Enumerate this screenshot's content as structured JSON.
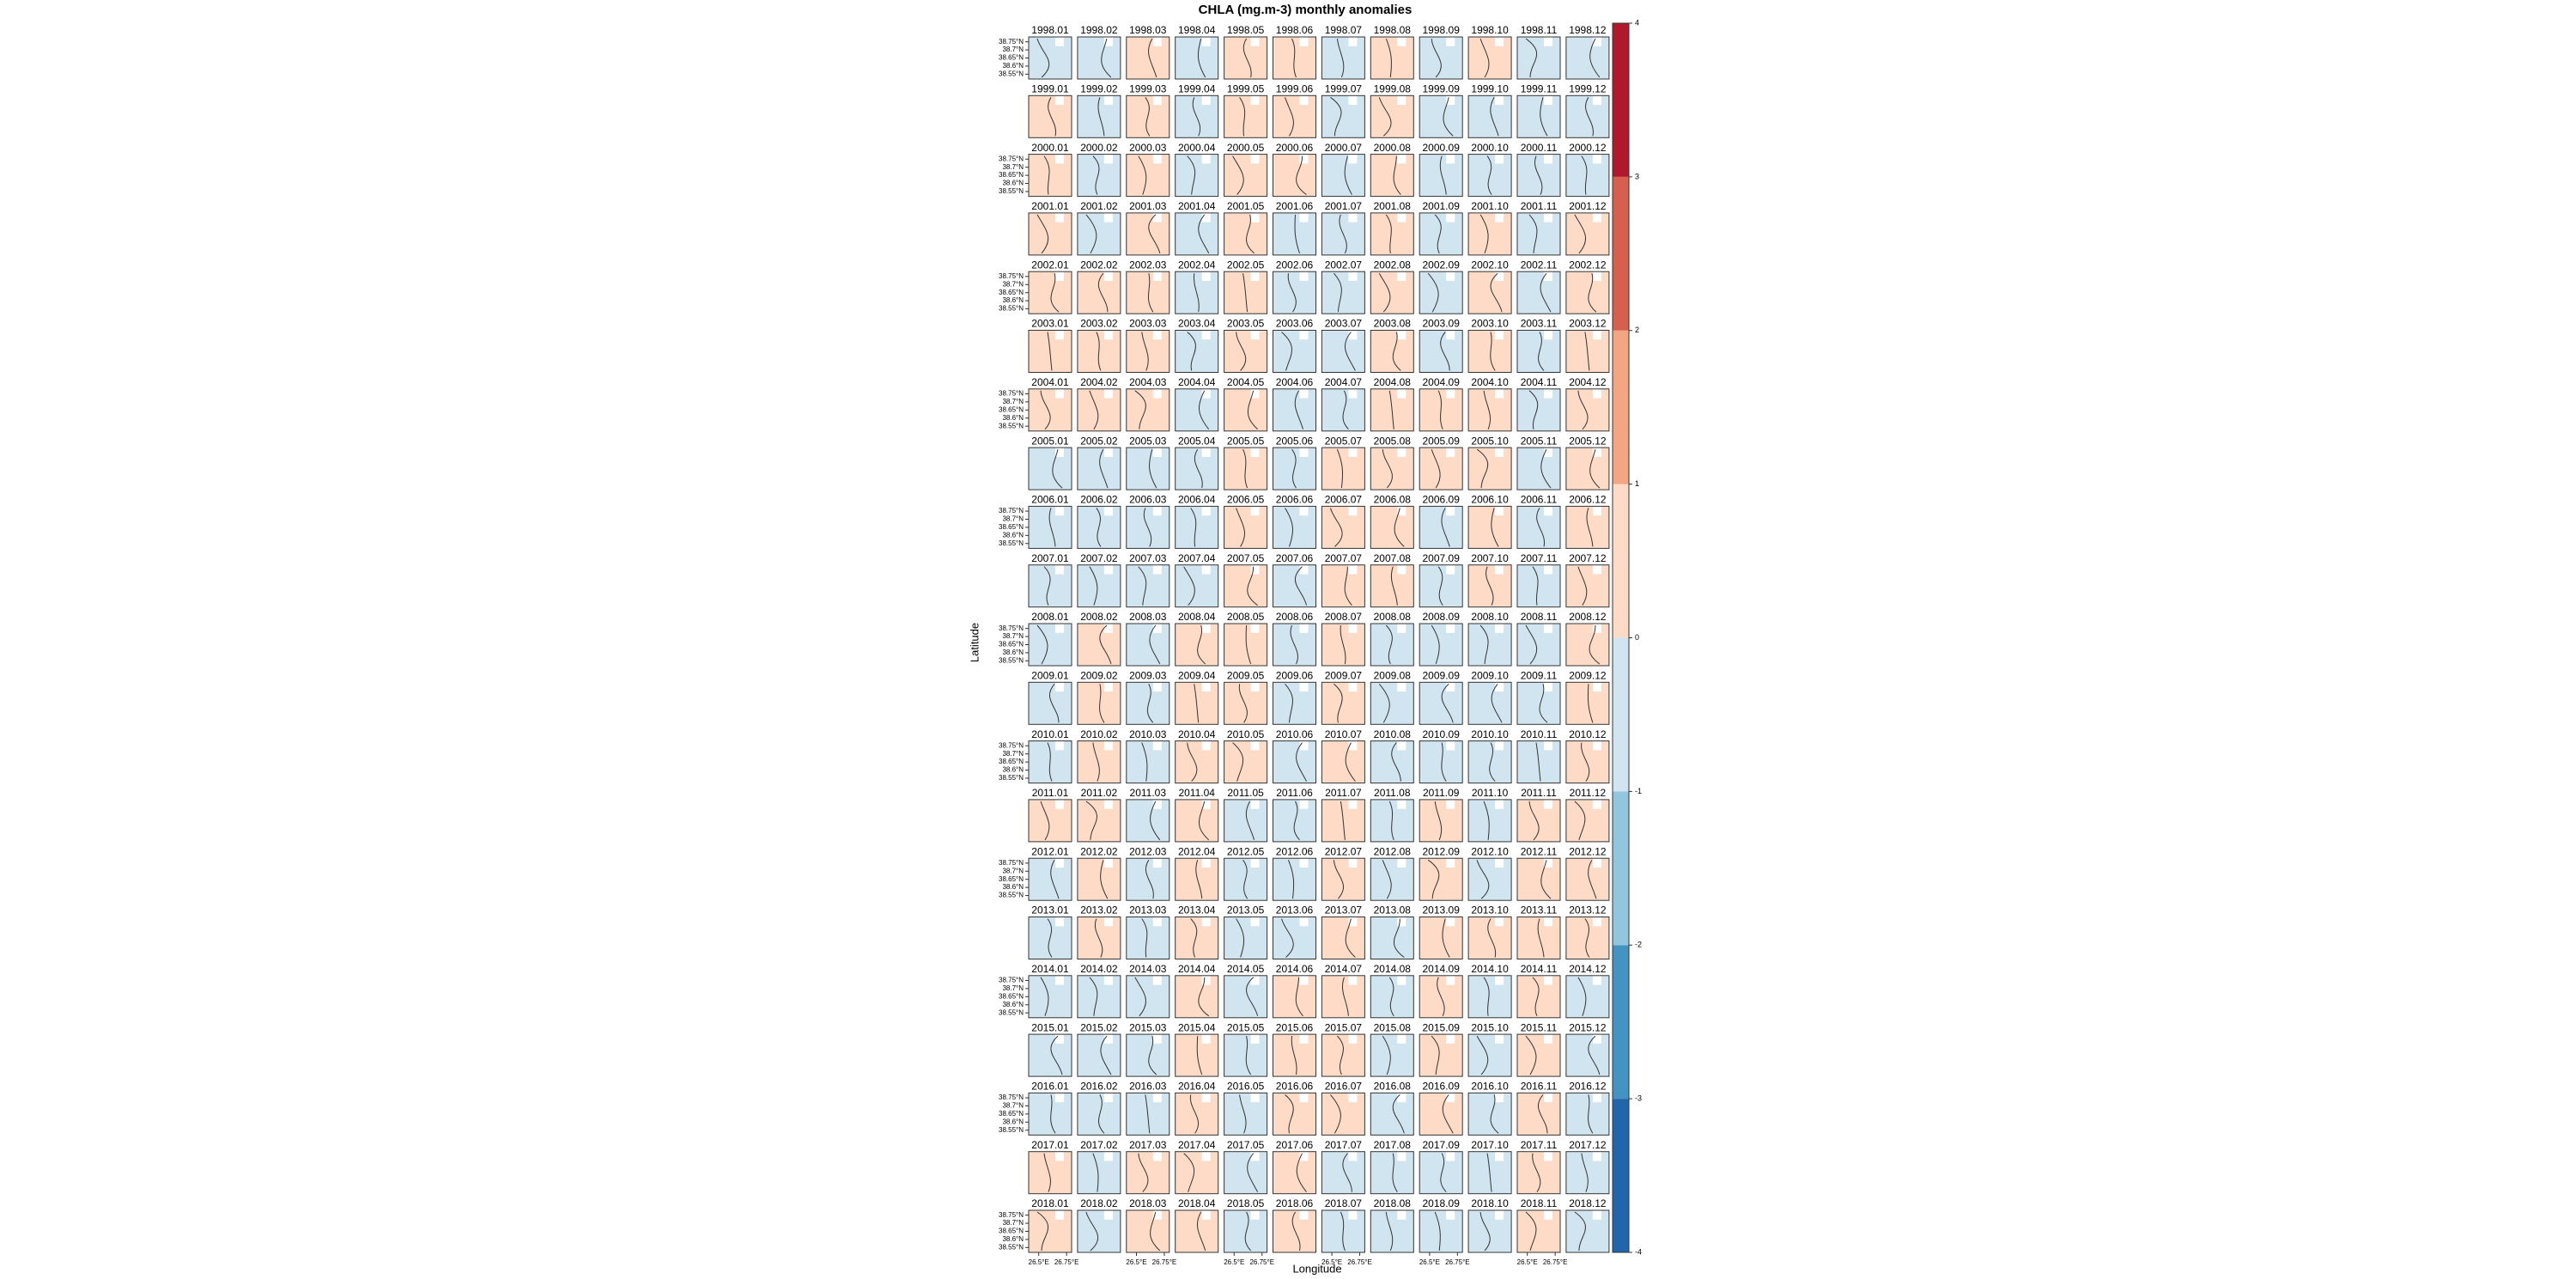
{
  "chart_data": {
    "type": "map-grid",
    "title": "CHLA (mg.m-3) monthly anomalies",
    "xlabel": "Longitude",
    "ylabel": "Latitude",
    "xlim": [
      26.41,
      26.795
    ],
    "ylim": [
      38.52,
      38.78
    ],
    "xticks": [
      {
        "value": 26.5,
        "label": "26.5°E"
      },
      {
        "value": 26.75,
        "label": "26.75°E"
      }
    ],
    "yticks": [
      {
        "value": 38.75,
        "label": "38.75°N"
      },
      {
        "value": 38.7,
        "label": "38.7°N"
      },
      {
        "value": 38.65,
        "label": "38.65°N"
      },
      {
        "value": 38.6,
        "label": "38.6°N"
      },
      {
        "value": 38.55,
        "label": "38.55°N"
      }
    ],
    "panels": [
      [
        "1998.01",
        "1998.02",
        "1998.03",
        "1998.04",
        "1998.05",
        "1998.06",
        "1998.07",
        "1998.08",
        "1998.09",
        "1998.10",
        "1998.11",
        "1998.12"
      ],
      [
        "1999.01",
        "1999.02",
        "1999.03",
        "1999.04",
        "1999.05",
        "1999.06",
        "1999.07",
        "1999.08",
        "1999.09",
        "1999.10",
        "1999.11",
        "1999.12"
      ],
      [
        "2000.01",
        "2000.02",
        "2000.03",
        "2000.04",
        "2000.05",
        "2000.06",
        "2000.07",
        "2000.08",
        "2000.09",
        "2000.10",
        "2000.11",
        "2000.12"
      ],
      [
        "2001.01",
        "2001.02",
        "2001.03",
        "2001.04",
        "2001.05",
        "2001.06",
        "2001.07",
        "2001.08",
        "2001.09",
        "2001.10",
        "2001.11",
        "2001.12"
      ],
      [
        "2002.01",
        "2002.02",
        "2002.03",
        "2002.04",
        "2002.05",
        "2002.06",
        "2002.07",
        "2002.08",
        "2002.09",
        "2002.10",
        "2002.11",
        "2002.12"
      ],
      [
        "2003.01",
        "2003.02",
        "2003.03",
        "2003.04",
        "2003.05",
        "2003.06",
        "2003.07",
        "2003.08",
        "2003.09",
        "2003.10",
        "2003.11",
        "2003.12"
      ],
      [
        "2004.01",
        "2004.02",
        "2004.03",
        "2004.04",
        "2004.05",
        "2004.06",
        "2004.07",
        "2004.08",
        "2004.09",
        "2004.10",
        "2004.11",
        "2004.12"
      ],
      [
        "2005.01",
        "2005.02",
        "2005.03",
        "2005.04",
        "2005.05",
        "2005.06",
        "2005.07",
        "2005.08",
        "2005.09",
        "2005.10",
        "2005.11",
        "2005.12"
      ],
      [
        "2006.01",
        "2006.02",
        "2006.03",
        "2006.04",
        "2006.05",
        "2006.06",
        "2006.07",
        "2006.08",
        "2006.09",
        "2006.10",
        "2006.11",
        "2006.12"
      ],
      [
        "2007.01",
        "2007.02",
        "2007.03",
        "2007.04",
        "2007.05",
        "2007.06",
        "2007.07",
        "2007.08",
        "2007.09",
        "2007.10",
        "2007.11",
        "2007.12"
      ],
      [
        "2008.01",
        "2008.02",
        "2008.03",
        "2008.04",
        "2008.05",
        "2008.06",
        "2008.07",
        "2008.08",
        "2008.09",
        "2008.10",
        "2008.11",
        "2008.12"
      ],
      [
        "2009.01",
        "2009.02",
        "2009.03",
        "2009.04",
        "2009.05",
        "2009.06",
        "2009.07",
        "2009.08",
        "2009.09",
        "2009.10",
        "2009.11",
        "2009.12"
      ],
      [
        "2010.01",
        "2010.02",
        "2010.03",
        "2010.04",
        "2010.05",
        "2010.06",
        "2010.07",
        "2010.08",
        "2010.09",
        "2010.10",
        "2010.11",
        "2010.12"
      ],
      [
        "2011.01",
        "2011.02",
        "2011.03",
        "2011.04",
        "2011.05",
        "2011.06",
        "2011.07",
        "2011.08",
        "2011.09",
        "2011.10",
        "2011.11",
        "2011.12"
      ],
      [
        "2012.01",
        "2012.02",
        "2012.03",
        "2012.04",
        "2012.05",
        "2012.06",
        "2012.07",
        "2012.08",
        "2012.09",
        "2012.10",
        "2012.11",
        "2012.12"
      ],
      [
        "2013.01",
        "2013.02",
        "2013.03",
        "2013.04",
        "2013.05",
        "2013.06",
        "2013.07",
        "2013.08",
        "2013.09",
        "2013.10",
        "2013.11",
        "2013.12"
      ],
      [
        "2014.01",
        "2014.02",
        "2014.03",
        "2014.04",
        "2014.05",
        "2014.06",
        "2014.07",
        "2014.08",
        "2014.09",
        "2014.10",
        "2014.11",
        "2014.12"
      ],
      [
        "2015.01",
        "2015.02",
        "2015.03",
        "2015.04",
        "2015.05",
        "2015.06",
        "2015.07",
        "2015.08",
        "2015.09",
        "2015.10",
        "2015.11",
        "2015.12"
      ],
      [
        "2016.01",
        "2016.02",
        "2016.03",
        "2016.04",
        "2016.05",
        "2016.06",
        "2016.07",
        "2016.08",
        "2016.09",
        "2016.10",
        "2016.11",
        "2016.12"
      ],
      [
        "2017.01",
        "2017.02",
        "2017.03",
        "2017.04",
        "2017.05",
        "2017.06",
        "2017.07",
        "2017.08",
        "2017.09",
        "2017.10",
        "2017.11",
        "2017.12"
      ],
      [
        "2018.01",
        "2018.02",
        "2018.03",
        "2018.04",
        "2018.05",
        "2018.06",
        "2018.07",
        "2018.08",
        "2018.09",
        "2018.10",
        "2018.11",
        "2018.12"
      ]
    ],
    "colorbar": {
      "lim": [
        -4,
        4
      ],
      "ticks": [
        -4,
        -3,
        -2,
        -1,
        0,
        1,
        2,
        3,
        4
      ],
      "colors": [
        "#2166ac",
        "#4393c3",
        "#92c5de",
        "#d1e5f0",
        "#fddbc7",
        "#f4a582",
        "#d6604d",
        "#b2182b"
      ]
    }
  }
}
